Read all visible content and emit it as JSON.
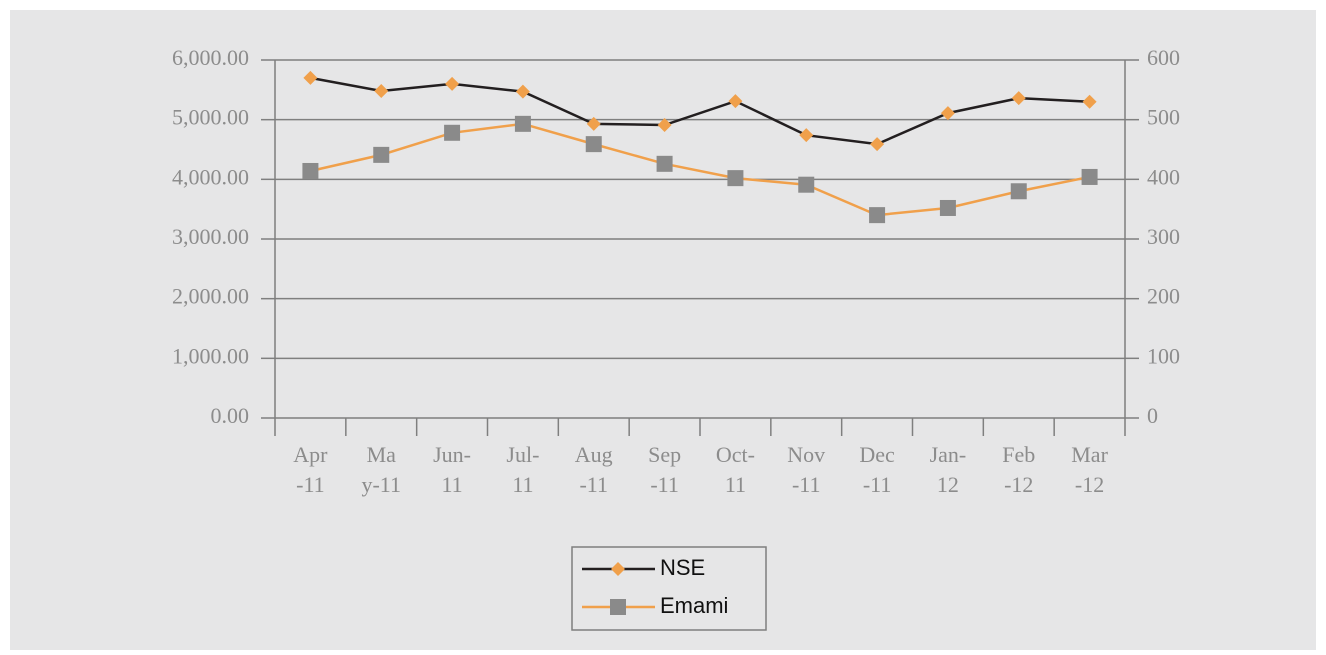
{
  "chart_data": {
    "type": "line",
    "categories": [
      "Apr-11",
      "May-11",
      "Jun-11",
      "Jul-11",
      "Aug-11",
      "Sep-11",
      "Oct-11",
      "Nov-11",
      "Dec-11",
      "Jan-12",
      "Feb-12",
      "Mar-12"
    ],
    "series": [
      {
        "name": "NSE",
        "color": "#231f20",
        "marker_color": "#f0a04b",
        "marker": "diamond",
        "values": [
          5700,
          5480,
          5600,
          5470,
          4930,
          4910,
          5310,
          4740,
          4590,
          5110,
          5360,
          5300
        ]
      },
      {
        "name": "Emami",
        "color": "#f0a04b",
        "marker_color": "#8a8a8a",
        "marker": "square",
        "axis": "y2",
        "values": [
          414,
          441,
          478,
          493,
          459,
          426,
          402,
          391,
          340,
          352,
          380,
          404
        ]
      }
    ],
    "ylim": [
      0,
      6000
    ],
    "yticks": [
      {
        "value": 0,
        "label": "0.00"
      },
      {
        "value": 1000,
        "label": "1,000.00"
      },
      {
        "value": 2000,
        "label": "2,000.00"
      },
      {
        "value": 3000,
        "label": "3,000.00"
      },
      {
        "value": 4000,
        "label": "4,000.00"
      },
      {
        "value": 5000,
        "label": "5,000.00"
      },
      {
        "value": 6000,
        "label": "6,000.00"
      }
    ],
    "y2lim": [
      0,
      600
    ],
    "y2ticks": [
      0,
      100,
      200,
      300,
      400,
      500,
      600
    ],
    "grid": true,
    "legend": "bottom"
  }
}
